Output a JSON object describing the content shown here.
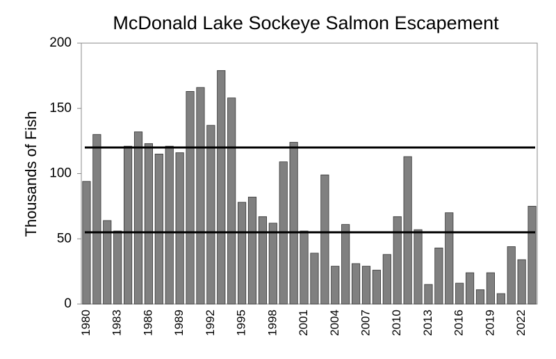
{
  "chart_data": {
    "type": "bar",
    "title": "McDonald Lake Sockeye Salmon Escapement",
    "y_label": "Thousands of Fish",
    "categories": [
      "1980",
      null,
      null,
      "1983",
      null,
      null,
      "1986",
      null,
      null,
      "1989",
      null,
      null,
      "1992",
      null,
      null,
      "1995",
      null,
      null,
      "1998",
      null,
      null,
      "2001",
      null,
      null,
      "2004",
      null,
      null,
      "2007",
      null,
      null,
      "2010",
      null,
      null,
      "2013",
      null,
      null,
      "2016",
      null,
      null,
      "2019",
      null,
      null,
      "2022",
      null
    ],
    "values": [
      94,
      130,
      64,
      56,
      121,
      132,
      123,
      115,
      121,
      116,
      163,
      166,
      137,
      179,
      158,
      78,
      82,
      67,
      62,
      109,
      124,
      56,
      39,
      99,
      29,
      61,
      31,
      29,
      26,
      38,
      67,
      113,
      57,
      15,
      43,
      70,
      16,
      24,
      11,
      24,
      8,
      44,
      34,
      75
    ],
    "color": "#808080",
    "hlines": [
      120,
      55
    ],
    "ylim": [
      0,
      200
    ],
    "yticks": [
      0,
      50,
      100,
      150,
      200
    ]
  }
}
